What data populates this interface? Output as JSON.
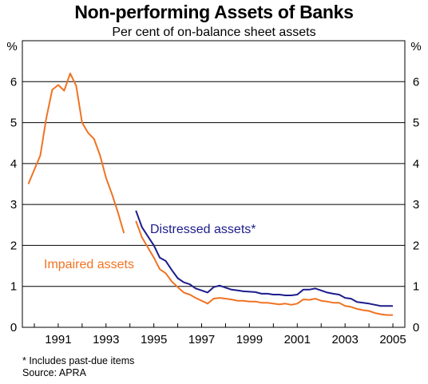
{
  "chart_data": {
    "type": "line",
    "title": "Non-performing Assets of Banks",
    "subtitle": "Per cent of on-balance sheet assets",
    "y_unit_label": "%",
    "ylim": [
      0,
      7
    ],
    "y_ticks": [
      0,
      1,
      2,
      3,
      4,
      5,
      6
    ],
    "xlim": [
      1989.5,
      2005.5
    ],
    "x_tick_labels": [
      "1991",
      "1993",
      "1995",
      "1997",
      "1999",
      "2001",
      "2003",
      "2005"
    ],
    "x_tick_values": [
      1991,
      1993,
      1995,
      1997,
      1999,
      2001,
      2003,
      2005
    ],
    "grid": true,
    "series": [
      {
        "name": "Impaired assets",
        "color": "#f07322",
        "segments": [
          [
            [
              1989.75,
              3.5
            ],
            [
              1990.0,
              3.85
            ],
            [
              1990.25,
              4.2
            ],
            [
              1990.5,
              5.1
            ],
            [
              1990.75,
              5.8
            ],
            [
              1991.0,
              5.92
            ],
            [
              1991.25,
              5.78
            ],
            [
              1991.5,
              6.2
            ],
            [
              1991.75,
              5.9
            ],
            [
              1992.0,
              5.0
            ],
            [
              1992.25,
              4.75
            ],
            [
              1992.5,
              4.6
            ],
            [
              1992.75,
              4.2
            ],
            [
              1993.0,
              3.65
            ],
            [
              1993.25,
              3.25
            ],
            [
              1993.5,
              2.8
            ],
            [
              1993.75,
              2.3
            ]
          ],
          [
            [
              1994.25,
              2.6
            ],
            [
              1994.5,
              2.2
            ],
            [
              1994.75,
              1.95
            ],
            [
              1995.0,
              1.7
            ],
            [
              1995.25,
              1.42
            ],
            [
              1995.5,
              1.32
            ],
            [
              1995.75,
              1.12
            ],
            [
              1996.0,
              0.98
            ],
            [
              1996.25,
              0.85
            ],
            [
              1996.5,
              0.8
            ],
            [
              1996.75,
              0.72
            ],
            [
              1997.0,
              0.65
            ],
            [
              1997.25,
              0.58
            ],
            [
              1997.5,
              0.7
            ],
            [
              1997.75,
              0.72
            ],
            [
              1998.0,
              0.7
            ],
            [
              1998.25,
              0.68
            ],
            [
              1998.5,
              0.65
            ],
            [
              1998.75,
              0.65
            ],
            [
              1999.0,
              0.63
            ],
            [
              1999.25,
              0.63
            ],
            [
              1999.5,
              0.6
            ],
            [
              1999.75,
              0.6
            ],
            [
              2000.0,
              0.58
            ],
            [
              2000.25,
              0.56
            ],
            [
              2000.5,
              0.58
            ],
            [
              2000.75,
              0.55
            ],
            [
              2001.0,
              0.58
            ],
            [
              2001.25,
              0.68
            ],
            [
              2001.5,
              0.67
            ],
            [
              2001.75,
              0.7
            ],
            [
              2002.0,
              0.65
            ],
            [
              2002.25,
              0.63
            ],
            [
              2002.5,
              0.6
            ],
            [
              2002.75,
              0.6
            ],
            [
              2003.0,
              0.52
            ],
            [
              2003.25,
              0.5
            ],
            [
              2003.5,
              0.45
            ],
            [
              2003.75,
              0.42
            ],
            [
              2004.0,
              0.4
            ],
            [
              2004.25,
              0.35
            ],
            [
              2004.5,
              0.32
            ],
            [
              2004.75,
              0.3
            ],
            [
              2005.0,
              0.3
            ]
          ]
        ]
      },
      {
        "name": "Distressed assets*",
        "color": "#1c1c8c",
        "segments": [
          [
            [
              1994.25,
              2.85
            ],
            [
              1994.5,
              2.45
            ],
            [
              1994.75,
              2.22
            ],
            [
              1995.0,
              2.0
            ],
            [
              1995.25,
              1.7
            ],
            [
              1995.5,
              1.62
            ],
            [
              1995.75,
              1.4
            ],
            [
              1996.0,
              1.2
            ],
            [
              1996.25,
              1.1
            ],
            [
              1996.5,
              1.05
            ],
            [
              1996.75,
              0.95
            ],
            [
              1997.0,
              0.9
            ],
            [
              1997.25,
              0.85
            ],
            [
              1997.5,
              0.98
            ],
            [
              1997.75,
              1.02
            ],
            [
              1998.0,
              0.97
            ],
            [
              1998.25,
              0.92
            ],
            [
              1998.5,
              0.9
            ],
            [
              1998.75,
              0.88
            ],
            [
              1999.0,
              0.87
            ],
            [
              1999.25,
              0.86
            ],
            [
              1999.5,
              0.82
            ],
            [
              1999.75,
              0.82
            ],
            [
              2000.0,
              0.8
            ],
            [
              2000.25,
              0.8
            ],
            [
              2000.5,
              0.78
            ],
            [
              2000.75,
              0.78
            ],
            [
              2001.0,
              0.8
            ],
            [
              2001.25,
              0.92
            ],
            [
              2001.5,
              0.92
            ],
            [
              2001.75,
              0.95
            ],
            [
              2002.0,
              0.9
            ],
            [
              2002.25,
              0.85
            ],
            [
              2002.5,
              0.82
            ],
            [
              2002.75,
              0.8
            ],
            [
              2003.0,
              0.72
            ],
            [
              2003.25,
              0.7
            ],
            [
              2003.5,
              0.62
            ],
            [
              2003.75,
              0.6
            ],
            [
              2004.0,
              0.58
            ],
            [
              2004.25,
              0.55
            ],
            [
              2004.5,
              0.52
            ],
            [
              2004.75,
              0.52
            ],
            [
              2005.0,
              0.52
            ]
          ]
        ]
      }
    ],
    "annotations": [
      {
        "text": "Distressed assets*",
        "series": 1
      },
      {
        "text": "Impaired assets",
        "series": 0
      }
    ]
  },
  "footnote": "* Includes past-due items",
  "source": "Source: APRA"
}
